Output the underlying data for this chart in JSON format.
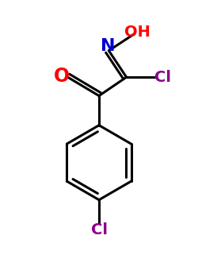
{
  "bg_color": "#ffffff",
  "bond_color": "#000000",
  "bond_width": 2.2,
  "colors": {
    "O": "#ff0000",
    "N": "#0000cd",
    "Cl_purple": "#8b008b",
    "C": "#000000"
  },
  "figsize": [
    2.5,
    3.5
  ],
  "dpi": 100,
  "xlim": [
    0,
    10
  ],
  "ylim": [
    0,
    14
  ]
}
